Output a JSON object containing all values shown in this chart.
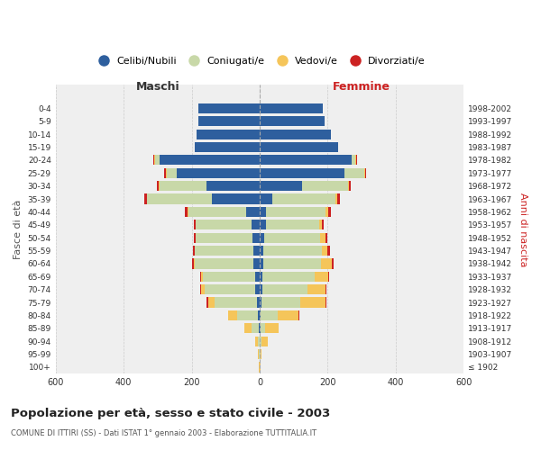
{
  "age_groups": [
    "100+",
    "95-99",
    "90-94",
    "85-89",
    "80-84",
    "75-79",
    "70-74",
    "65-69",
    "60-64",
    "55-59",
    "50-54",
    "45-49",
    "40-44",
    "35-39",
    "30-34",
    "25-29",
    "20-24",
    "15-19",
    "10-14",
    "5-9",
    "0-4"
  ],
  "birth_years": [
    "≤ 1902",
    "1903-1907",
    "1908-1912",
    "1913-1917",
    "1918-1922",
    "1923-1927",
    "1928-1932",
    "1933-1937",
    "1938-1942",
    "1943-1947",
    "1948-1952",
    "1953-1957",
    "1958-1962",
    "1963-1967",
    "1968-1972",
    "1973-1977",
    "1978-1982",
    "1983-1987",
    "1988-1992",
    "1993-1997",
    "1998-2002"
  ],
  "males_celibi": [
    0,
    1,
    1,
    2,
    5,
    8,
    12,
    12,
    18,
    18,
    22,
    25,
    40,
    140,
    155,
    245,
    295,
    190,
    185,
    180,
    180
  ],
  "males_coniugati": [
    1,
    2,
    4,
    22,
    60,
    125,
    150,
    155,
    172,
    172,
    165,
    162,
    170,
    190,
    140,
    28,
    12,
    2,
    0,
    0,
    0
  ],
  "males_vedovi": [
    1,
    2,
    8,
    22,
    28,
    18,
    10,
    5,
    3,
    2,
    2,
    2,
    2,
    2,
    2,
    2,
    4,
    0,
    0,
    0,
    0
  ],
  "males_divorziati": [
    0,
    0,
    0,
    0,
    0,
    4,
    4,
    4,
    5,
    5,
    5,
    5,
    7,
    7,
    5,
    5,
    2,
    0,
    0,
    0,
    0
  ],
  "females_celibi": [
    0,
    0,
    1,
    2,
    3,
    5,
    7,
    8,
    10,
    12,
    14,
    18,
    20,
    38,
    125,
    250,
    270,
    230,
    210,
    190,
    185
  ],
  "females_coniugati": [
    1,
    2,
    5,
    15,
    50,
    115,
    135,
    155,
    170,
    170,
    165,
    158,
    175,
    185,
    135,
    58,
    12,
    2,
    0,
    0,
    0
  ],
  "females_vedovi": [
    2,
    4,
    18,
    38,
    62,
    75,
    52,
    38,
    32,
    16,
    14,
    8,
    7,
    4,
    3,
    3,
    2,
    0,
    0,
    0,
    0
  ],
  "females_divorziati": [
    0,
    0,
    0,
    0,
    2,
    2,
    3,
    3,
    5,
    8,
    5,
    5,
    8,
    8,
    5,
    3,
    2,
    0,
    0,
    0,
    0
  ],
  "color_celibi": "#2e5f9e",
  "color_coniugati": "#c8d8a8",
  "color_vedovi": "#f5c55a",
  "color_divorziati": "#cc2222",
  "legend_labels": [
    "Celibi/Nubili",
    "Coniugati/e",
    "Vedovi/e",
    "Divorziati/e"
  ],
  "title": "Popolazione per età, sesso e stato civile - 2003",
  "subtitle": "COMUNE DI ITTIRI (SS) - Dati ISTAT 1° gennaio 2003 - Elaborazione TUTTITALIA.IT",
  "label_maschi": "Maschi",
  "label_femmine": "Femmine",
  "ylabel_left": "Fasce di età",
  "ylabel_right": "Anni di nascita",
  "xlim": 600,
  "bg_color": "#ffffff",
  "plot_bg": "#efefef",
  "grid_color": "#cccccc"
}
